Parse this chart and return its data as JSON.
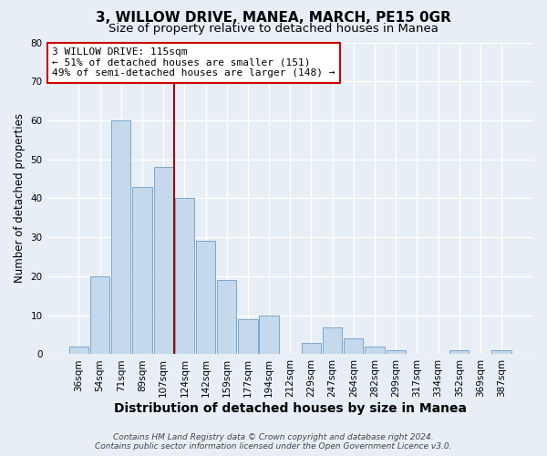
{
  "title": "3, WILLOW DRIVE, MANEA, MARCH, PE15 0GR",
  "subtitle": "Size of property relative to detached houses in Manea",
  "xlabel": "Distribution of detached houses by size in Manea",
  "ylabel": "Number of detached properties",
  "bar_labels": [
    "36sqm",
    "54sqm",
    "71sqm",
    "89sqm",
    "107sqm",
    "124sqm",
    "142sqm",
    "159sqm",
    "177sqm",
    "194sqm",
    "212sqm",
    "229sqm",
    "247sqm",
    "264sqm",
    "282sqm",
    "299sqm",
    "317sqm",
    "334sqm",
    "352sqm",
    "369sqm",
    "387sqm"
  ],
  "bar_values": [
    2,
    20,
    60,
    43,
    48,
    40,
    29,
    19,
    9,
    10,
    0,
    3,
    7,
    4,
    2,
    1,
    0,
    0,
    1,
    0,
    1
  ],
  "bar_color": "#c5d9ed",
  "bar_edge_color": "#7ba7cc",
  "ylim": [
    0,
    80
  ],
  "yticks": [
    0,
    10,
    20,
    30,
    40,
    50,
    60,
    70,
    80
  ],
  "vline_color": "#aa0000",
  "annotation_title": "3 WILLOW DRIVE: 115sqm",
  "annotation_line1": "← 51% of detached houses are smaller (151)",
  "annotation_line2": "49% of semi-detached houses are larger (148) →",
  "annotation_box_color": "#ffffff",
  "annotation_box_edge": "#cc0000",
  "footer_line1": "Contains HM Land Registry data © Crown copyright and database right 2024.",
  "footer_line2": "Contains public sector information licensed under the Open Government Licence v3.0.",
  "background_color": "#e8eef5",
  "grid_color": "#ffffff",
  "title_fontsize": 11,
  "subtitle_fontsize": 9.5,
  "xlabel_fontsize": 10,
  "ylabel_fontsize": 8.5,
  "tick_fontsize": 7.5,
  "footer_fontsize": 6.5
}
